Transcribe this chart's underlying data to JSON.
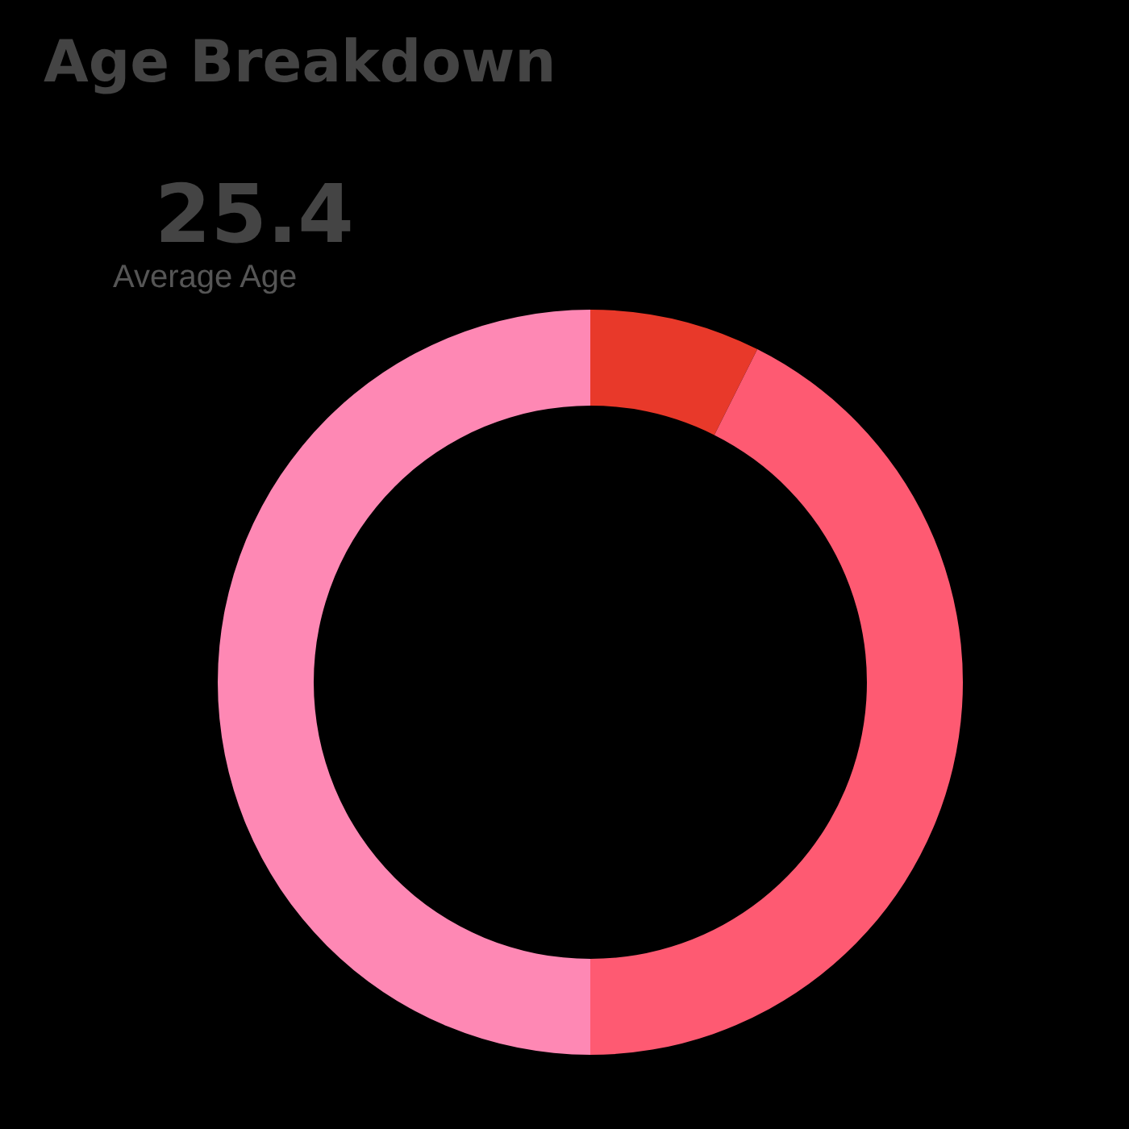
{
  "chart_data": {
    "type": "donut",
    "title": "Age Breakdown",
    "annotations": [
      "25.4",
      "Average Age"
    ],
    "categories": [
      null,
      null,
      null
    ],
    "values": [
      7.4,
      42.6,
      50
    ],
    "colors": [
      "#e8392a",
      "#fe5a72",
      "#fe88b4"
    ]
  }
}
